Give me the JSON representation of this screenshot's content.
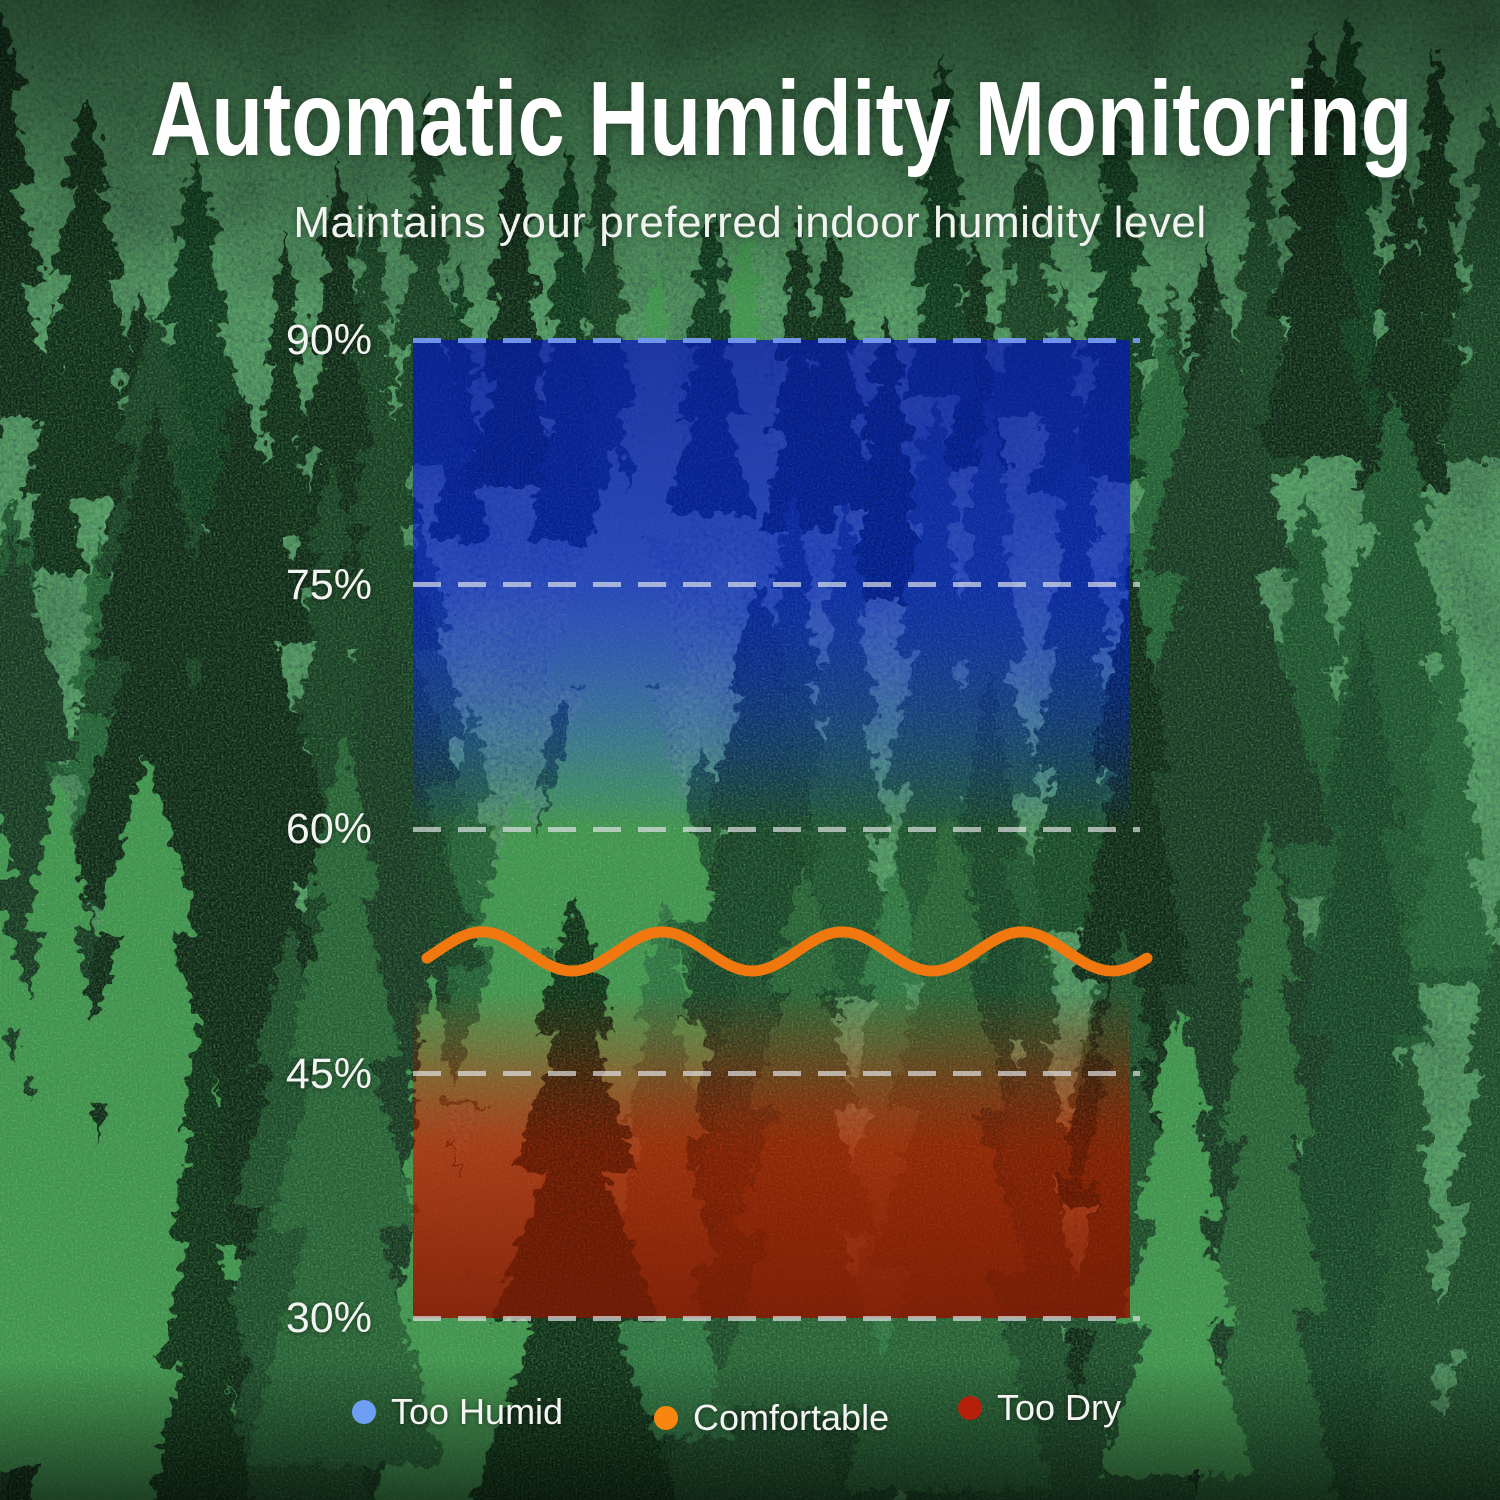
{
  "title": "Automatic Humidity Monitoring",
  "subtitle": "Maintains your preferred indoor humidity level",
  "chart_data": {
    "type": "area",
    "title": "Automatic Humidity Monitoring",
    "subtitle": "Maintains your preferred indoor humidity level",
    "y_axis": {
      "unit": "%",
      "range": [
        30,
        90
      ],
      "tick_labels": [
        "90%",
        "75%",
        "60%",
        "45%",
        "30%"
      ],
      "tick_values": [
        90,
        75,
        60,
        45,
        30
      ],
      "gridline_style": "dashed",
      "gridline_color": "#e2e5e9"
    },
    "zones": [
      {
        "name": "Too Humid",
        "from_percent": 60,
        "to_percent": 90,
        "fill_color": "#16339b",
        "fade": "opaque at 90%, transparent toward 60%"
      },
      {
        "name": "Comfortable",
        "kind": "wavy-line",
        "mean_percent": 52.5,
        "amplitude_percent": 1.2,
        "cycles": 4,
        "phase_radians": -0.35,
        "line_color": "#f0780f"
      },
      {
        "name": "Too Dry",
        "from_percent": 30,
        "to_percent": 50,
        "fill_color": "#7a2a14",
        "fade": "opaque at 30%, transparent toward 50%"
      }
    ],
    "legend": [
      {
        "label": "Too Humid",
        "swatch_color": "#6f9ff2"
      },
      {
        "label": "Comfortable",
        "swatch_color": "#f8860f"
      },
      {
        "label": "Too Dry",
        "swatch_color": "#b5200c"
      }
    ],
    "legend_position": "bottom",
    "background": "dense pine forest photo"
  }
}
